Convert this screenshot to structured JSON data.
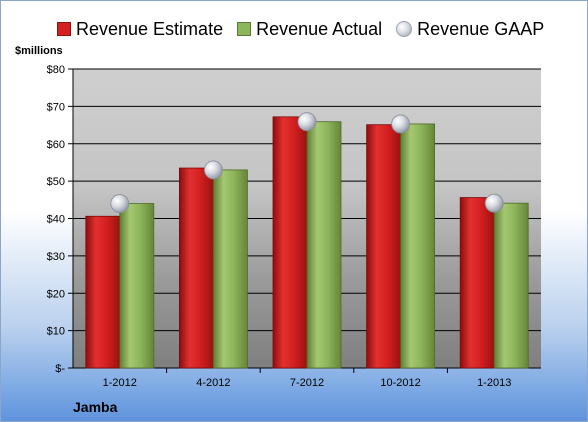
{
  "chart_data": {
    "type": "bar",
    "unit_label": "$millions",
    "categories": [
      "1-2012",
      "4-2012",
      "7-2012",
      "10-2012",
      "1-2013"
    ],
    "series": [
      {
        "name": "Revenue Estimate",
        "kind": "bar",
        "color": "#d42020",
        "values": [
          40.6,
          53.5,
          67.2,
          65.1,
          45.6
        ]
      },
      {
        "name": "Revenue Actual",
        "kind": "bar",
        "color": "#8db55a",
        "values": [
          44.0,
          53.0,
          65.9,
          65.3,
          44.1
        ]
      },
      {
        "name": "Revenue GAAP",
        "kind": "marker",
        "color": "#b8bcc6",
        "values": [
          44.0,
          53.0,
          65.9,
          65.3,
          44.1
        ]
      }
    ],
    "y_ticks": [
      "$-",
      "$10",
      "$20",
      "$30",
      "$40",
      "$50",
      "$60",
      "$70",
      "$80"
    ],
    "ylim": [
      0,
      80
    ],
    "grid": true,
    "legend_position": "top"
  },
  "footer": {
    "company": "Jamba"
  }
}
